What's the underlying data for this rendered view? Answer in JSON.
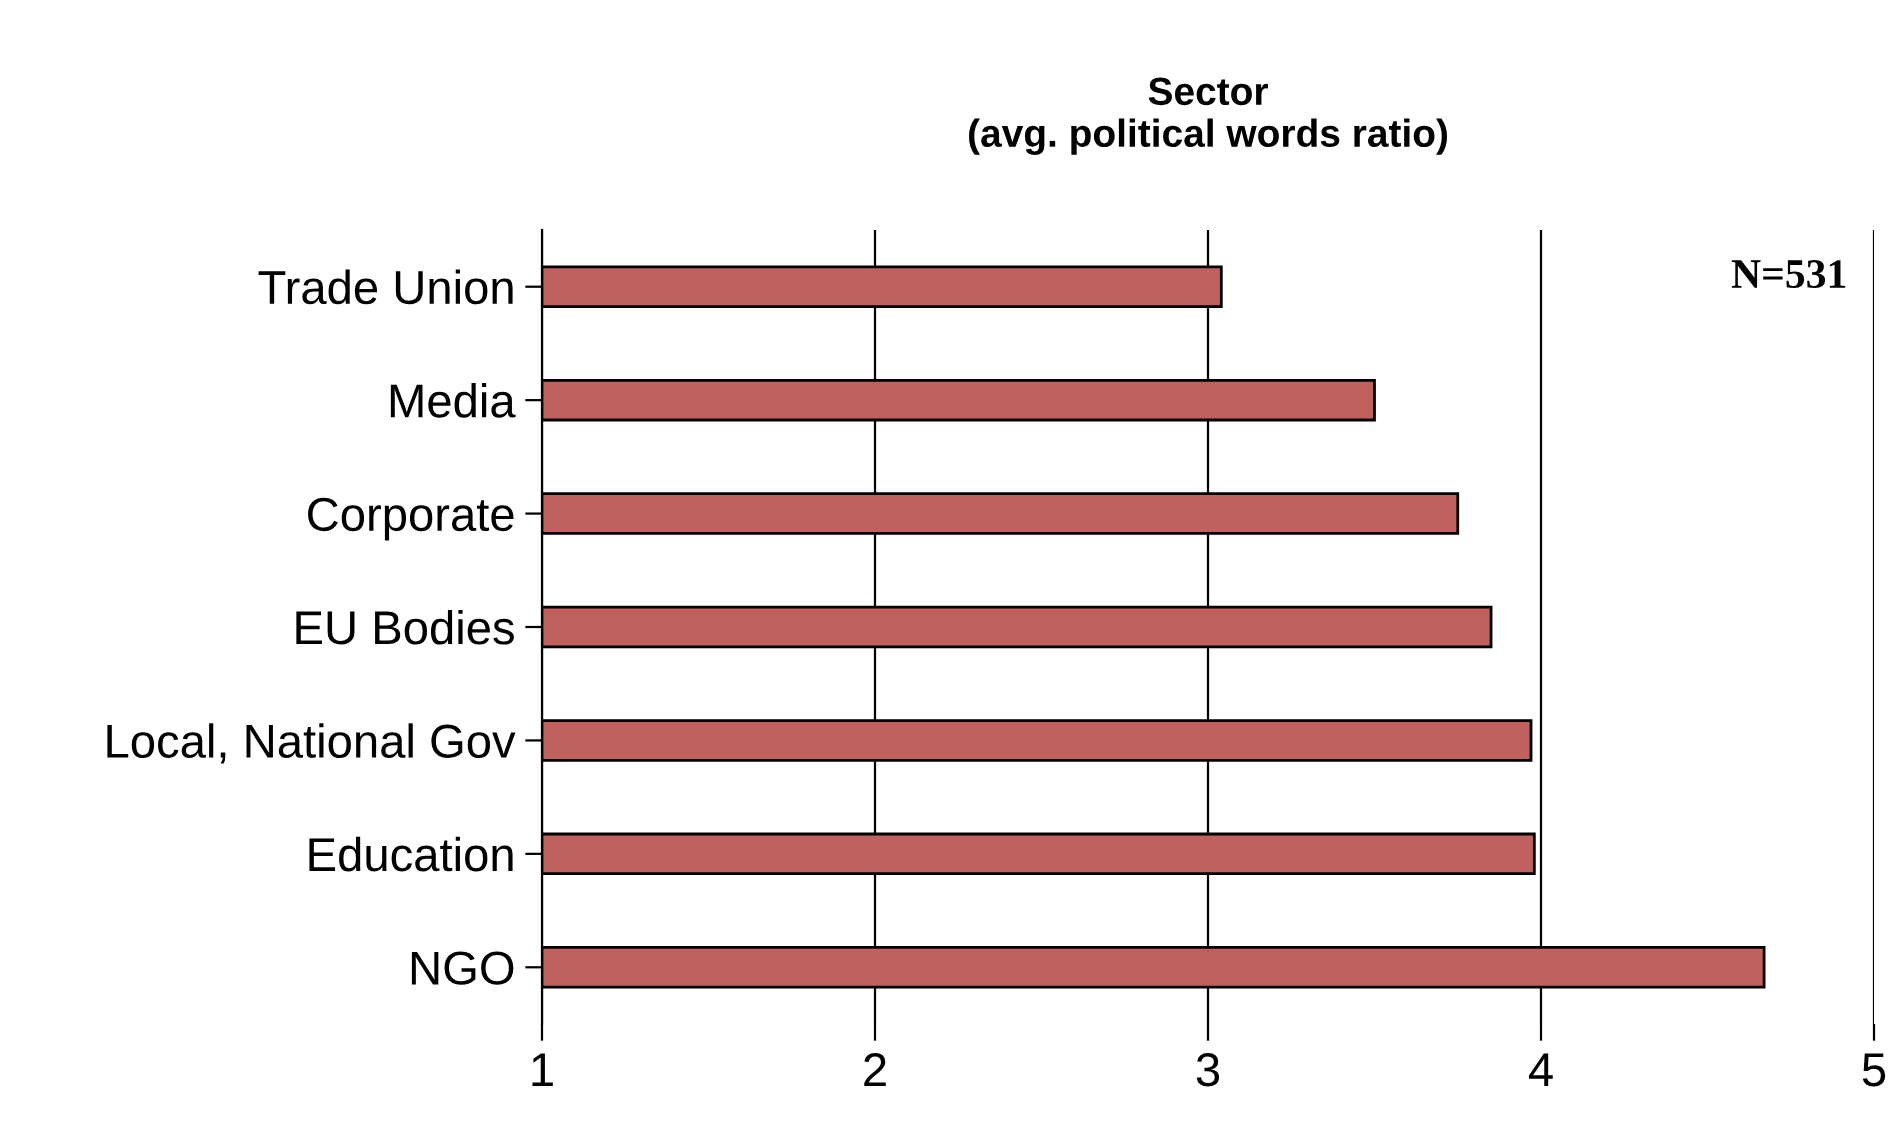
{
  "chart_data": {
    "type": "bar",
    "orientation": "horizontal",
    "title": "Sector\n(avg. political words ratio)",
    "categories": [
      "Trade Union",
      "Media",
      "Corporate",
      "EU Bodies",
      "Local, National Gov",
      "Education",
      "NGO"
    ],
    "values": [
      3.04,
      3.5,
      3.75,
      3.85,
      3.97,
      3.98,
      4.67
    ],
    "color": "#c0605f",
    "xlim": [
      1,
      5
    ],
    "xticks": [
      1,
      2,
      3,
      4,
      5
    ],
    "grid": "x",
    "annotations": [
      "N=531"
    ]
  }
}
